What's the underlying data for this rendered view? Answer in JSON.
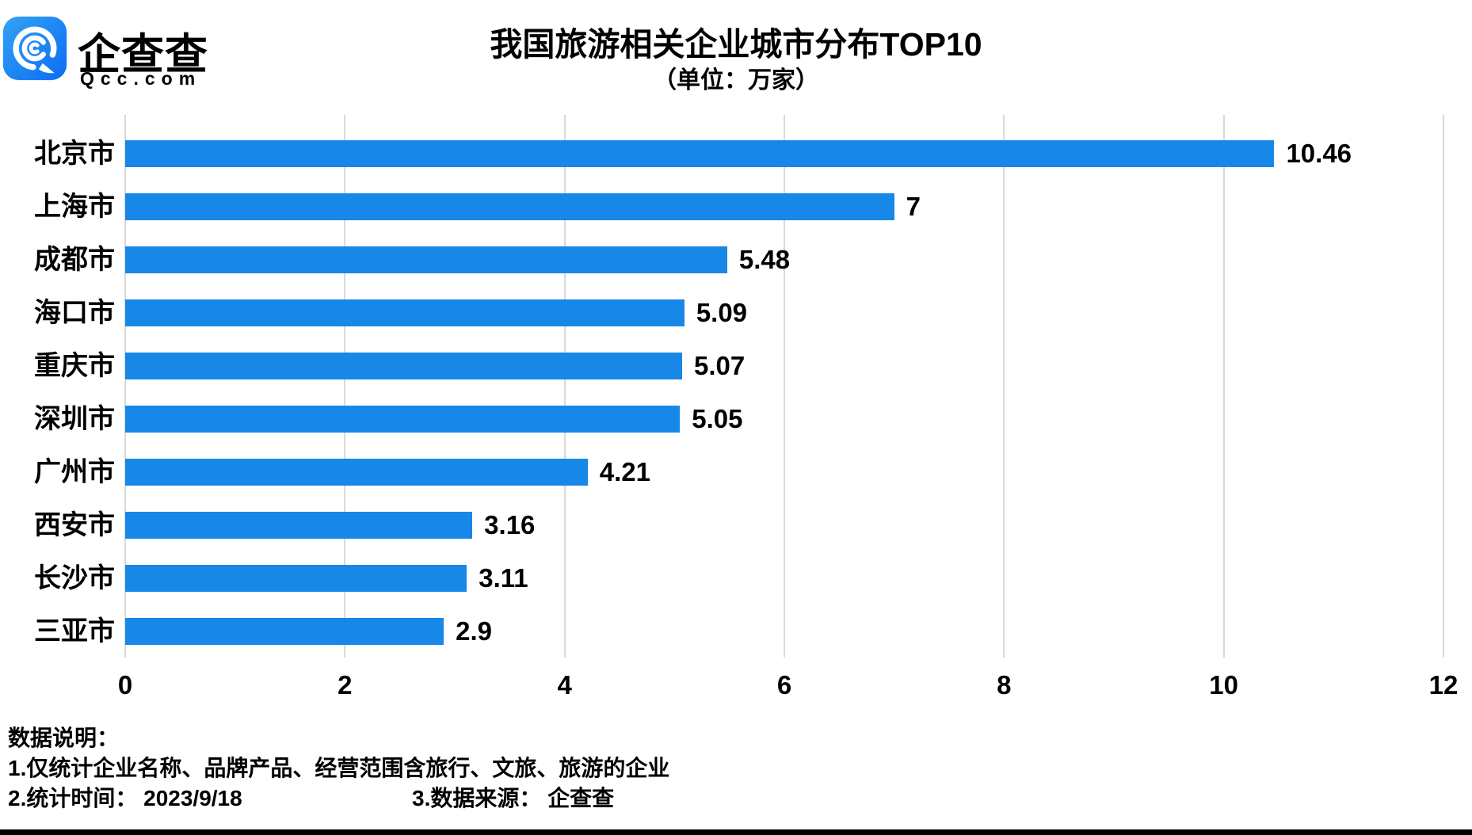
{
  "logo": {
    "name": "企查查",
    "domain": "Qcc.com"
  },
  "header": {
    "title": "我国旅游相关企业城市分布TOP10",
    "subtitle": "（单位：万家）"
  },
  "chart_data": {
    "type": "bar",
    "orientation": "horizontal",
    "title": "我国旅游相关企业城市分布TOP10",
    "unit": "万家",
    "categories": [
      "北京市",
      "上海市",
      "成都市",
      "海口市",
      "重庆市",
      "深圳市",
      "广州市",
      "西安市",
      "长沙市",
      "三亚市"
    ],
    "values": [
      10.46,
      7,
      5.48,
      5.09,
      5.07,
      5.05,
      4.21,
      3.16,
      3.11,
      2.9
    ],
    "value_labels": [
      "10.46",
      "7",
      "5.48",
      "5.09",
      "5.07",
      "5.05",
      "4.21",
      "3.16",
      "3.11",
      "2.9"
    ],
    "xlabel": "",
    "ylabel": "",
    "xlim": [
      0,
      12
    ],
    "xticks": [
      0,
      2,
      4,
      6,
      8,
      10,
      12
    ],
    "grid": true,
    "legend_position": "none",
    "bar_color": "#1787E8",
    "gridline_color": "#D9D9D9"
  },
  "footer": {
    "heading": "数据说明：",
    "note1": "1.仅统计企业名称、品牌产品、经营范围含旅行、文旅、旅游的企业",
    "note2": "2.统计时间： 2023/9/18",
    "note3": "3.数据来源： 企查查"
  },
  "colors": {
    "bar": "#1787E8",
    "gridline": "#D9D9D9",
    "logo_gradient_start": "#33A3F5",
    "logo_gradient_end": "#0C6CF2",
    "bottom_strip": "#000000"
  }
}
